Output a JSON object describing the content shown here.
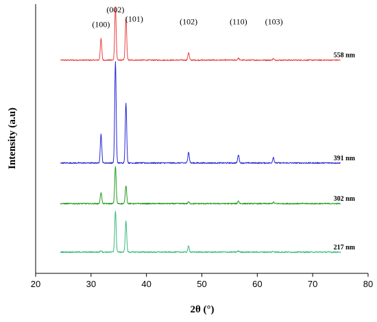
{
  "chart_data": {
    "type": "line",
    "xlabel": "2θ (°)",
    "ylabel": "Intensity (a.u)",
    "xlim": [
      20,
      80
    ],
    "xticks": [
      20,
      30,
      40,
      50,
      60,
      70,
      80
    ],
    "ylim": [
      0,
      100
    ],
    "y_ticks_shown": false,
    "x_range_measured": [
      24.5,
      75
    ],
    "peak_labels": [
      {
        "text": "(100)",
        "x": 31.8,
        "y": 91.5
      },
      {
        "text": "(002)",
        "x": 34.4,
        "y": 97
      },
      {
        "text": "(101)",
        "x": 37.8,
        "y": 93.5
      },
      {
        "text": "(102)",
        "x": 47.6,
        "y": 92.5
      },
      {
        "text": "(110)",
        "x": 56.6,
        "y": 92.5
      },
      {
        "text": "(103)",
        "x": 63.0,
        "y": 92.5
      }
    ],
    "series": [
      {
        "name": "558 nm",
        "color": "#e8413f",
        "baseline": 79.2,
        "peaks": [
          {
            "x": 31.8,
            "h": 7.9
          },
          {
            "x": 34.4,
            "h": 19.7
          },
          {
            "x": 36.3,
            "h": 15.6
          },
          {
            "x": 47.6,
            "h": 2.9
          },
          {
            "x": 56.6,
            "h": 0.7
          },
          {
            "x": 62.9,
            "h": 0.5
          }
        ]
      },
      {
        "name": "391 nm",
        "color": "#2323d8",
        "baseline": 41.0,
        "peaks": [
          {
            "x": 31.8,
            "h": 10.7
          },
          {
            "x": 34.4,
            "h": 37.7
          },
          {
            "x": 36.3,
            "h": 22.1
          },
          {
            "x": 47.6,
            "h": 4.1
          },
          {
            "x": 56.6,
            "h": 3.1
          },
          {
            "x": 62.9,
            "h": 2.1
          }
        ]
      },
      {
        "name": "302 nm",
        "color": "#1e9b1e",
        "baseline": 25.9,
        "peaks": [
          {
            "x": 31.8,
            "h": 4.2
          },
          {
            "x": 34.4,
            "h": 13.9
          },
          {
            "x": 36.3,
            "h": 6.7
          },
          {
            "x": 47.6,
            "h": 0.6
          },
          {
            "x": 56.6,
            "h": 1.0
          },
          {
            "x": 62.9,
            "h": 0.5
          }
        ]
      },
      {
        "name": "217 nm",
        "color": "#35b97a",
        "baseline": 7.9,
        "peaks": [
          {
            "x": 31.8,
            "h": 0.6
          },
          {
            "x": 34.4,
            "h": 15.3
          },
          {
            "x": 36.3,
            "h": 11.4
          },
          {
            "x": 47.6,
            "h": 2.2
          },
          {
            "x": 56.6,
            "h": 0.4
          },
          {
            "x": 62.9,
            "h": 0.3
          }
        ]
      }
    ]
  }
}
